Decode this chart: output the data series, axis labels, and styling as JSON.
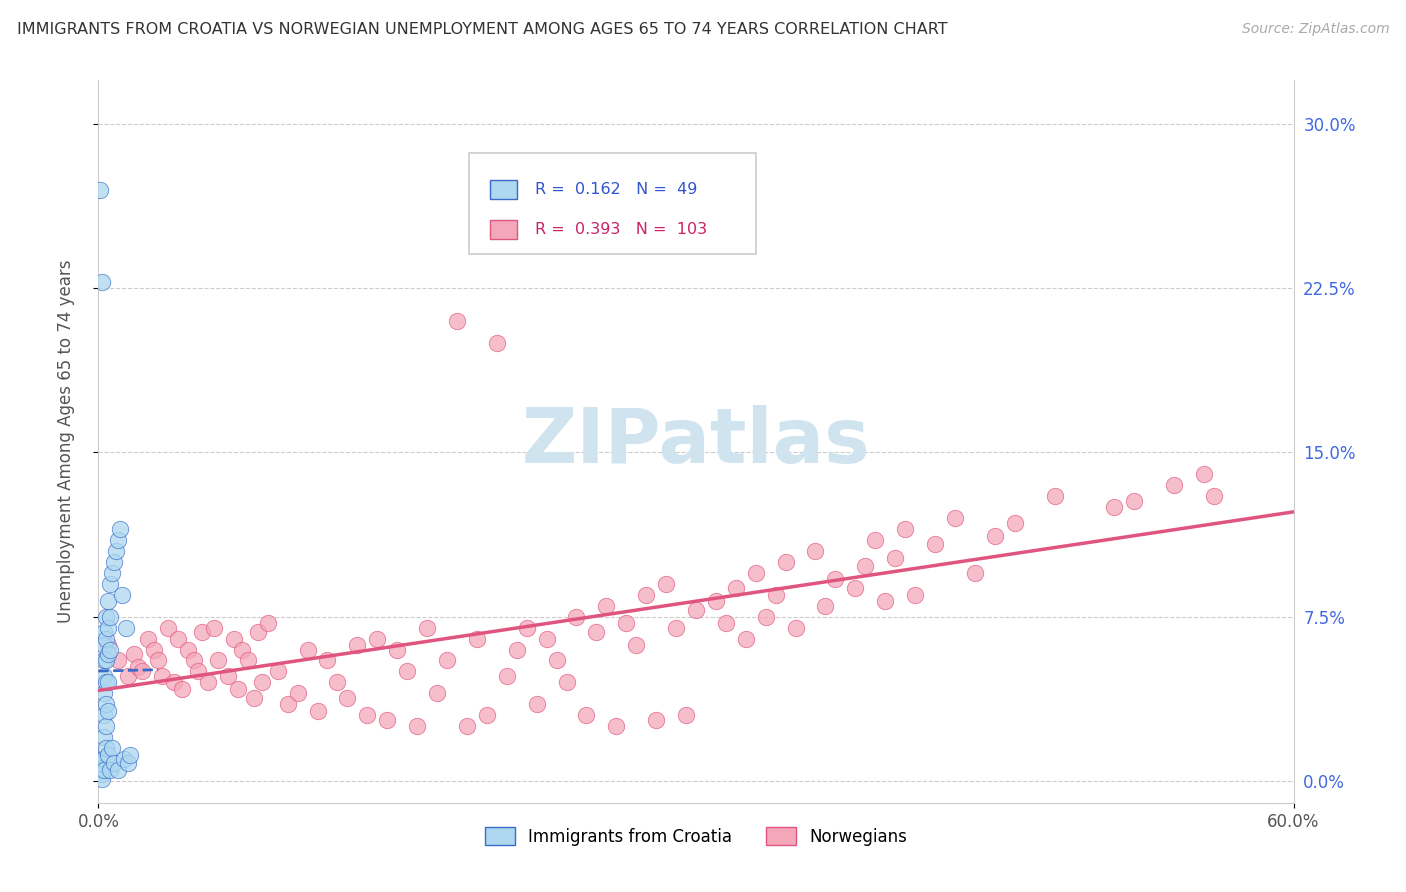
{
  "title": "IMMIGRANTS FROM CROATIA VS NORWEGIAN UNEMPLOYMENT AMONG AGES 65 TO 74 YEARS CORRELATION CHART",
  "source": "Source: ZipAtlas.com",
  "ylabel": "Unemployment Among Ages 65 to 74 years",
  "xlim": [
    0.0,
    0.6
  ],
  "ylim": [
    -0.01,
    0.32
  ],
  "yticks": [
    0.0,
    0.075,
    0.15,
    0.225,
    0.3
  ],
  "xticks": [
    0.0,
    0.6
  ],
  "R_croatia": 0.162,
  "N_croatia": 49,
  "R_norwegian": 0.393,
  "N_norwegian": 103,
  "color_croatia": "#ADD8F0",
  "color_norwegian": "#F4A7B9",
  "line_color_croatia": "#3A6BC8",
  "line_color_norwegian": "#E05580",
  "watermark_color": "#D0E4F0",
  "croatia_x": [
    0.001,
    0.001,
    0.001,
    0.002,
    0.002,
    0.002,
    0.002,
    0.002,
    0.002,
    0.002,
    0.003,
    0.003,
    0.003,
    0.003,
    0.003,
    0.003,
    0.003,
    0.003,
    0.003,
    0.004,
    0.004,
    0.004,
    0.004,
    0.004,
    0.004,
    0.004,
    0.005,
    0.005,
    0.005,
    0.005,
    0.005,
    0.005,
    0.006,
    0.006,
    0.006,
    0.006,
    0.007,
    0.007,
    0.008,
    0.008,
    0.009,
    0.01,
    0.01,
    0.011,
    0.012,
    0.013,
    0.014,
    0.015,
    0.016
  ],
  "croatia_y": [
    0.27,
    0.005,
    0.008,
    0.228,
    0.01,
    0.008,
    0.006,
    0.005,
    0.003,
    0.001,
    0.068,
    0.062,
    0.055,
    0.048,
    0.04,
    0.03,
    0.02,
    0.01,
    0.005,
    0.075,
    0.065,
    0.055,
    0.045,
    0.035,
    0.025,
    0.015,
    0.082,
    0.07,
    0.058,
    0.045,
    0.032,
    0.012,
    0.09,
    0.075,
    0.06,
    0.005,
    0.095,
    0.015,
    0.1,
    0.008,
    0.105,
    0.11,
    0.005,
    0.115,
    0.085,
    0.01,
    0.07,
    0.008,
    0.012
  ],
  "norwegian_x": [
    0.005,
    0.01,
    0.015,
    0.018,
    0.02,
    0.022,
    0.025,
    0.028,
    0.03,
    0.032,
    0.035,
    0.038,
    0.04,
    0.042,
    0.045,
    0.048,
    0.05,
    0.052,
    0.055,
    0.058,
    0.06,
    0.065,
    0.068,
    0.07,
    0.072,
    0.075,
    0.078,
    0.08,
    0.082,
    0.085,
    0.09,
    0.095,
    0.1,
    0.105,
    0.11,
    0.115,
    0.12,
    0.125,
    0.13,
    0.135,
    0.14,
    0.145,
    0.15,
    0.155,
    0.16,
    0.165,
    0.17,
    0.175,
    0.18,
    0.185,
    0.19,
    0.195,
    0.2,
    0.205,
    0.21,
    0.215,
    0.22,
    0.225,
    0.23,
    0.235,
    0.24,
    0.245,
    0.25,
    0.255,
    0.26,
    0.265,
    0.27,
    0.275,
    0.28,
    0.285,
    0.29,
    0.295,
    0.3,
    0.31,
    0.315,
    0.32,
    0.325,
    0.33,
    0.335,
    0.34,
    0.345,
    0.35,
    0.36,
    0.365,
    0.37,
    0.38,
    0.385,
    0.39,
    0.395,
    0.4,
    0.405,
    0.41,
    0.42,
    0.43,
    0.44,
    0.45,
    0.46,
    0.48,
    0.51,
    0.52,
    0.54,
    0.555,
    0.56
  ],
  "norwegian_y": [
    0.062,
    0.055,
    0.048,
    0.058,
    0.052,
    0.05,
    0.065,
    0.06,
    0.055,
    0.048,
    0.07,
    0.045,
    0.065,
    0.042,
    0.06,
    0.055,
    0.05,
    0.068,
    0.045,
    0.07,
    0.055,
    0.048,
    0.065,
    0.042,
    0.06,
    0.055,
    0.038,
    0.068,
    0.045,
    0.072,
    0.05,
    0.035,
    0.04,
    0.06,
    0.032,
    0.055,
    0.045,
    0.038,
    0.062,
    0.03,
    0.065,
    0.028,
    0.06,
    0.05,
    0.025,
    0.07,
    0.04,
    0.055,
    0.21,
    0.025,
    0.065,
    0.03,
    0.2,
    0.048,
    0.06,
    0.07,
    0.035,
    0.065,
    0.055,
    0.045,
    0.075,
    0.03,
    0.068,
    0.08,
    0.025,
    0.072,
    0.062,
    0.085,
    0.028,
    0.09,
    0.07,
    0.03,
    0.078,
    0.082,
    0.072,
    0.088,
    0.065,
    0.095,
    0.075,
    0.085,
    0.1,
    0.07,
    0.105,
    0.08,
    0.092,
    0.088,
    0.098,
    0.11,
    0.082,
    0.102,
    0.115,
    0.085,
    0.108,
    0.12,
    0.095,
    0.112,
    0.118,
    0.13,
    0.125,
    0.128,
    0.135,
    0.14,
    0.13
  ]
}
